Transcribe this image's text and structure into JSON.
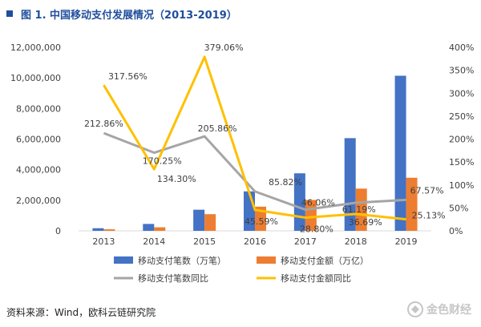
{
  "figure": {
    "title": "图 1. 中国移动支付发展情况（2013-2019）",
    "source": "资料来源：Wind，欧科云链研究院",
    "watermark": "金色财经"
  },
  "chart_data": {
    "type": "bar",
    "categories": [
      "2013",
      "2014",
      "2015",
      "2016",
      "2017",
      "2018",
      "2019"
    ],
    "y_left": {
      "range": [
        0,
        12000000
      ],
      "ticks": [
        0,
        2000000,
        4000000,
        6000000,
        8000000,
        10000000,
        12000000
      ],
      "tick_labels": [
        "0",
        "2,000,000",
        "4,000,000",
        "6,000,000",
        "8,000,000",
        "10,000,000",
        "12,000,000"
      ]
    },
    "y_right": {
      "range": [
        0,
        400
      ],
      "ticks": [
        0,
        50,
        100,
        150,
        200,
        250,
        300,
        350,
        400
      ],
      "tick_labels": [
        "0%",
        "50%",
        "100%",
        "150%",
        "200%",
        "250%",
        "300%",
        "350%",
        "400%"
      ]
    },
    "series": [
      {
        "name": "移动支付笔数（万笔）",
        "kind": "bar",
        "axis": "left",
        "color": "#4472c4",
        "values": [
          170000,
          450000,
          1380000,
          2580000,
          3760000,
          6060000,
          10140000
        ]
      },
      {
        "name": "移动支付金额（万亿）",
        "kind": "bar",
        "axis": "left",
        "color": "#ed7d31",
        "values": [
          100000,
          230000,
          1090000,
          1580000,
          2020000,
          2760000,
          3470000
        ]
      },
      {
        "name": "移动支付笔数同比",
        "kind": "line",
        "axis": "right",
        "color": "#a5a5a5",
        "values": [
          212.86,
          170.25,
          205.86,
          85.82,
          46.06,
          61.19,
          67.57
        ],
        "labels": [
          "212.86%",
          "170.25%",
          "205.86%",
          "85.82%",
          "46.06%",
          "61.19%",
          "67.57%"
        ]
      },
      {
        "name": "移动支付金额同比",
        "kind": "line",
        "axis": "right",
        "color": "#ffc000",
        "values": [
          317.56,
          134.3,
          379.06,
          45.59,
          28.8,
          36.69,
          25.13
        ],
        "labels": [
          "317.56%",
          "134.30%",
          "379.06%",
          "45.59%",
          "28.80%",
          "36.69%",
          "25.13%"
        ]
      }
    ],
    "legend": [
      "移动支付笔数（万笔）",
      "移动支付金额（万亿）",
      "移动支付笔数同比",
      "移动支付金额同比"
    ],
    "legend_position": "bottom",
    "grid": false
  }
}
